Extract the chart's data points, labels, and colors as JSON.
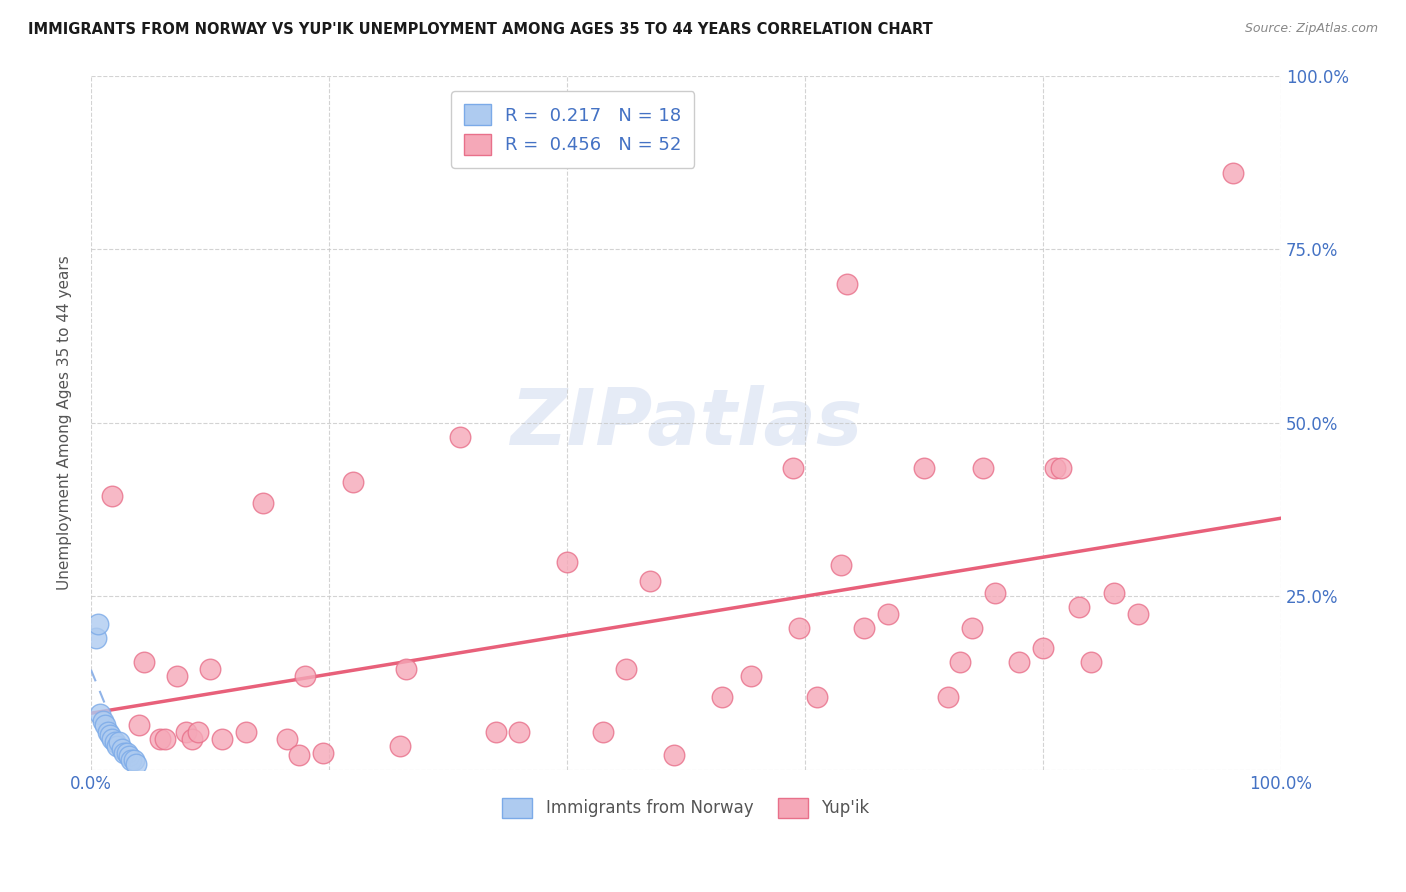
{
  "title": "IMMIGRANTS FROM NORWAY VS YUP'IK UNEMPLOYMENT AMONG AGES 35 TO 44 YEARS CORRELATION CHART",
  "source": "Source: ZipAtlas.com",
  "ylabel": "Unemployment Among Ages 35 to 44 years",
  "watermark": "ZIPatlas",
  "xlim": [
    0.0,
    1.0
  ],
  "ylim": [
    0.0,
    1.0
  ],
  "legend1_label": "R =  0.217   N = 18",
  "legend2_label": "R =  0.456   N = 52",
  "legend_labels_bottom": [
    "Immigrants from Norway",
    "Yup'ik"
  ],
  "norway_color": "#aecbf0",
  "yupik_color": "#f5a8b8",
  "norway_edge": "#7baae8",
  "yupik_edge": "#e8708a",
  "norway_R": 0.217,
  "norway_N": 18,
  "yupik_R": 0.456,
  "yupik_N": 52,
  "norway_points": [
    [
      0.004,
      0.19
    ],
    [
      0.006,
      0.21
    ],
    [
      0.008,
      0.08
    ],
    [
      0.01,
      0.07
    ],
    [
      0.012,
      0.065
    ],
    [
      0.014,
      0.055
    ],
    [
      0.016,
      0.05
    ],
    [
      0.018,
      0.045
    ],
    [
      0.02,
      0.04
    ],
    [
      0.022,
      0.035
    ],
    [
      0.024,
      0.04
    ],
    [
      0.026,
      0.03
    ],
    [
      0.028,
      0.025
    ],
    [
      0.03,
      0.025
    ],
    [
      0.032,
      0.02
    ],
    [
      0.034,
      0.015
    ],
    [
      0.036,
      0.015
    ],
    [
      0.038,
      0.008
    ]
  ],
  "yupik_points": [
    [
      0.018,
      0.395
    ],
    [
      0.04,
      0.065
    ],
    [
      0.045,
      0.155
    ],
    [
      0.058,
      0.045
    ],
    [
      0.062,
      0.045
    ],
    [
      0.072,
      0.135
    ],
    [
      0.08,
      0.055
    ],
    [
      0.085,
      0.045
    ],
    [
      0.09,
      0.055
    ],
    [
      0.1,
      0.145
    ],
    [
      0.11,
      0.045
    ],
    [
      0.13,
      0.055
    ],
    [
      0.145,
      0.385
    ],
    [
      0.165,
      0.045
    ],
    [
      0.175,
      0.022
    ],
    [
      0.18,
      0.135
    ],
    [
      0.195,
      0.025
    ],
    [
      0.22,
      0.415
    ],
    [
      0.26,
      0.035
    ],
    [
      0.265,
      0.145
    ],
    [
      0.31,
      0.48
    ],
    [
      0.34,
      0.055
    ],
    [
      0.36,
      0.055
    ],
    [
      0.4,
      0.3
    ],
    [
      0.43,
      0.055
    ],
    [
      0.45,
      0.145
    ],
    [
      0.47,
      0.272
    ],
    [
      0.49,
      0.022
    ],
    [
      0.53,
      0.105
    ],
    [
      0.555,
      0.135
    ],
    [
      0.59,
      0.435
    ],
    [
      0.595,
      0.205
    ],
    [
      0.61,
      0.105
    ],
    [
      0.63,
      0.295
    ],
    [
      0.635,
      0.7
    ],
    [
      0.65,
      0.205
    ],
    [
      0.67,
      0.225
    ],
    [
      0.7,
      0.435
    ],
    [
      0.72,
      0.105
    ],
    [
      0.73,
      0.155
    ],
    [
      0.74,
      0.205
    ],
    [
      0.75,
      0.435
    ],
    [
      0.76,
      0.255
    ],
    [
      0.78,
      0.155
    ],
    [
      0.8,
      0.175
    ],
    [
      0.81,
      0.435
    ],
    [
      0.815,
      0.435
    ],
    [
      0.83,
      0.235
    ],
    [
      0.84,
      0.155
    ],
    [
      0.86,
      0.255
    ],
    [
      0.88,
      0.225
    ],
    [
      0.96,
      0.86
    ]
  ],
  "background_color": "#ffffff",
  "grid_color": "#c8c8c8",
  "title_color": "#1a1a1a",
  "axis_label_color": "#555555",
  "tick_color": "#4472c4",
  "norway_line_color": "#91b4e8",
  "yupik_line_color": "#e8607a"
}
